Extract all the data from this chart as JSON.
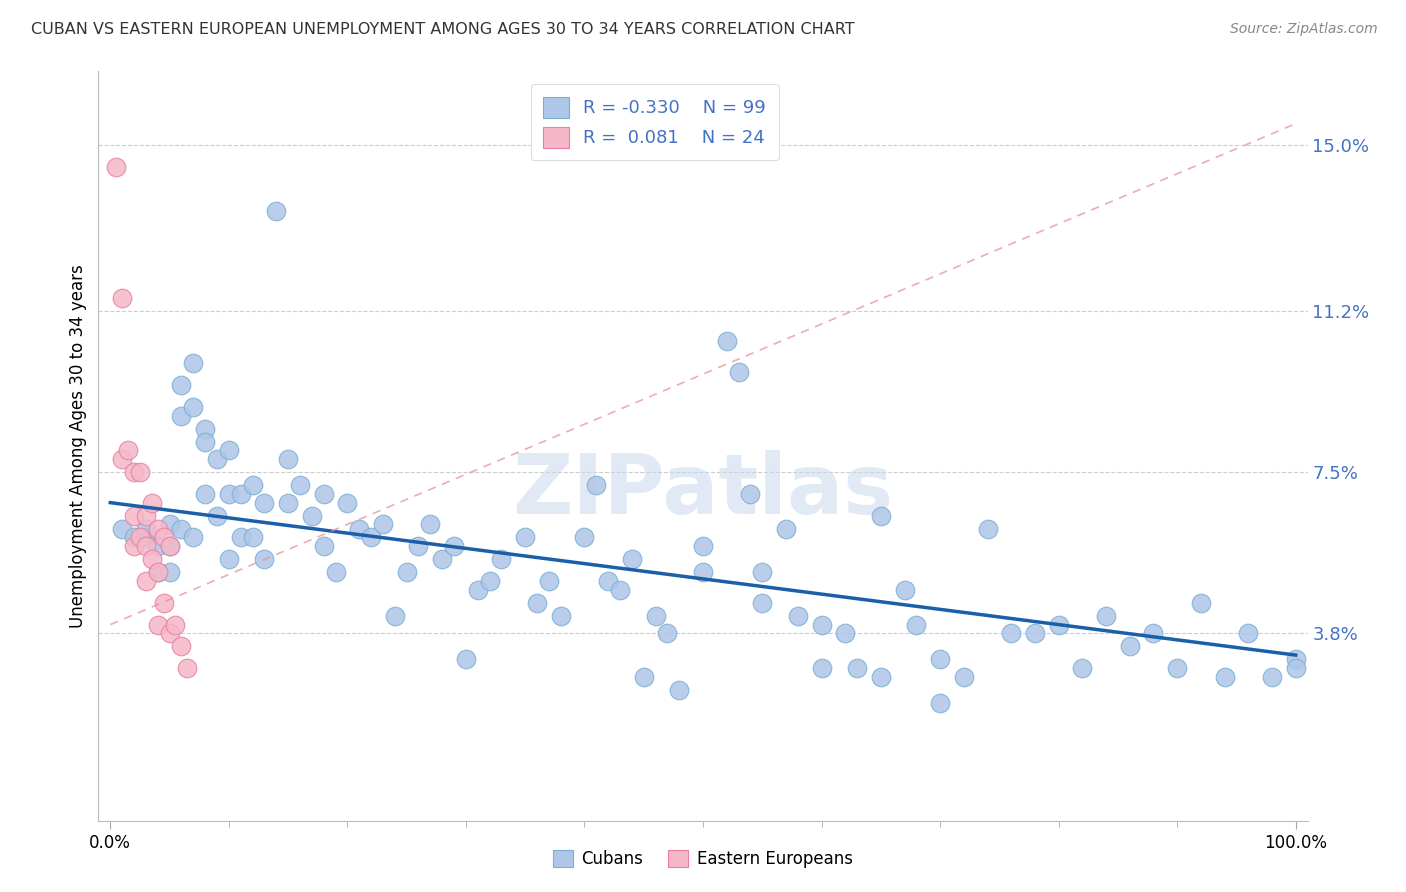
{
  "title": "CUBAN VS EASTERN EUROPEAN UNEMPLOYMENT AMONG AGES 30 TO 34 YEARS CORRELATION CHART",
  "source": "Source: ZipAtlas.com",
  "ylabel": "Unemployment Among Ages 30 to 34 years",
  "xlim": [
    0.0,
    1.0
  ],
  "ylim": [
    0.0,
    0.16
  ],
  "yticks": [
    0.038,
    0.075,
    0.112,
    0.15
  ],
  "ytick_labels": [
    "3.8%",
    "7.5%",
    "11.2%",
    "15.0%"
  ],
  "xticks": [
    0.0,
    1.0
  ],
  "xtick_labels": [
    "0.0%",
    "100.0%"
  ],
  "cuban_color": "#aec6e8",
  "cuban_edge_color": "#7aafd4",
  "eastern_color": "#f5b8c8",
  "eastern_edge_color": "#e87fa0",
  "cuban_line_color": "#1a5fa8",
  "eastern_line_color": "#e8909a",
  "legend_text_color": "#4472c4",
  "watermark": "ZIPatlas",
  "cuban_R": -0.33,
  "cuban_N": 99,
  "eastern_R": 0.081,
  "eastern_N": 24,
  "cubans_x": [
    0.01,
    0.02,
    0.03,
    0.03,
    0.04,
    0.04,
    0.05,
    0.05,
    0.05,
    0.06,
    0.06,
    0.06,
    0.07,
    0.07,
    0.07,
    0.08,
    0.08,
    0.08,
    0.09,
    0.09,
    0.1,
    0.1,
    0.1,
    0.11,
    0.11,
    0.12,
    0.12,
    0.13,
    0.13,
    0.14,
    0.15,
    0.15,
    0.16,
    0.17,
    0.18,
    0.18,
    0.19,
    0.2,
    0.21,
    0.22,
    0.23,
    0.24,
    0.25,
    0.26,
    0.27,
    0.28,
    0.29,
    0.3,
    0.31,
    0.32,
    0.33,
    0.35,
    0.36,
    0.37,
    0.38,
    0.4,
    0.41,
    0.42,
    0.43,
    0.44,
    0.45,
    0.46,
    0.47,
    0.48,
    0.5,
    0.52,
    0.53,
    0.54,
    0.55,
    0.57,
    0.58,
    0.6,
    0.62,
    0.63,
    0.65,
    0.67,
    0.68,
    0.7,
    0.72,
    0.74,
    0.76,
    0.78,
    0.8,
    0.82,
    0.84,
    0.86,
    0.88,
    0.9,
    0.92,
    0.94,
    0.96,
    0.98,
    1.0,
    1.0,
    0.5,
    0.55,
    0.6,
    0.65,
    0.7
  ],
  "cubans_y": [
    0.062,
    0.06,
    0.06,
    0.062,
    0.058,
    0.052,
    0.063,
    0.058,
    0.052,
    0.095,
    0.088,
    0.062,
    0.1,
    0.09,
    0.06,
    0.085,
    0.082,
    0.07,
    0.078,
    0.065,
    0.08,
    0.07,
    0.055,
    0.07,
    0.06,
    0.072,
    0.06,
    0.068,
    0.055,
    0.135,
    0.078,
    0.068,
    0.072,
    0.065,
    0.07,
    0.058,
    0.052,
    0.068,
    0.062,
    0.06,
    0.063,
    0.042,
    0.052,
    0.058,
    0.063,
    0.055,
    0.058,
    0.032,
    0.048,
    0.05,
    0.055,
    0.06,
    0.045,
    0.05,
    0.042,
    0.06,
    0.072,
    0.05,
    0.048,
    0.055,
    0.028,
    0.042,
    0.038,
    0.025,
    0.052,
    0.105,
    0.098,
    0.07,
    0.052,
    0.062,
    0.042,
    0.04,
    0.038,
    0.03,
    0.065,
    0.048,
    0.04,
    0.032,
    0.028,
    0.062,
    0.038,
    0.038,
    0.04,
    0.03,
    0.042,
    0.035,
    0.038,
    0.03,
    0.045,
    0.028,
    0.038,
    0.028,
    0.032,
    0.03,
    0.058,
    0.045,
    0.03,
    0.028,
    0.022
  ],
  "eastern_x": [
    0.005,
    0.01,
    0.01,
    0.015,
    0.02,
    0.02,
    0.02,
    0.025,
    0.025,
    0.03,
    0.03,
    0.03,
    0.035,
    0.035,
    0.04,
    0.04,
    0.04,
    0.045,
    0.045,
    0.05,
    0.05,
    0.055,
    0.06,
    0.065
  ],
  "eastern_y": [
    0.145,
    0.115,
    0.078,
    0.08,
    0.075,
    0.065,
    0.058,
    0.075,
    0.06,
    0.065,
    0.058,
    0.05,
    0.068,
    0.055,
    0.062,
    0.052,
    0.04,
    0.06,
    0.045,
    0.058,
    0.038,
    0.04,
    0.035,
    0.03
  ]
}
